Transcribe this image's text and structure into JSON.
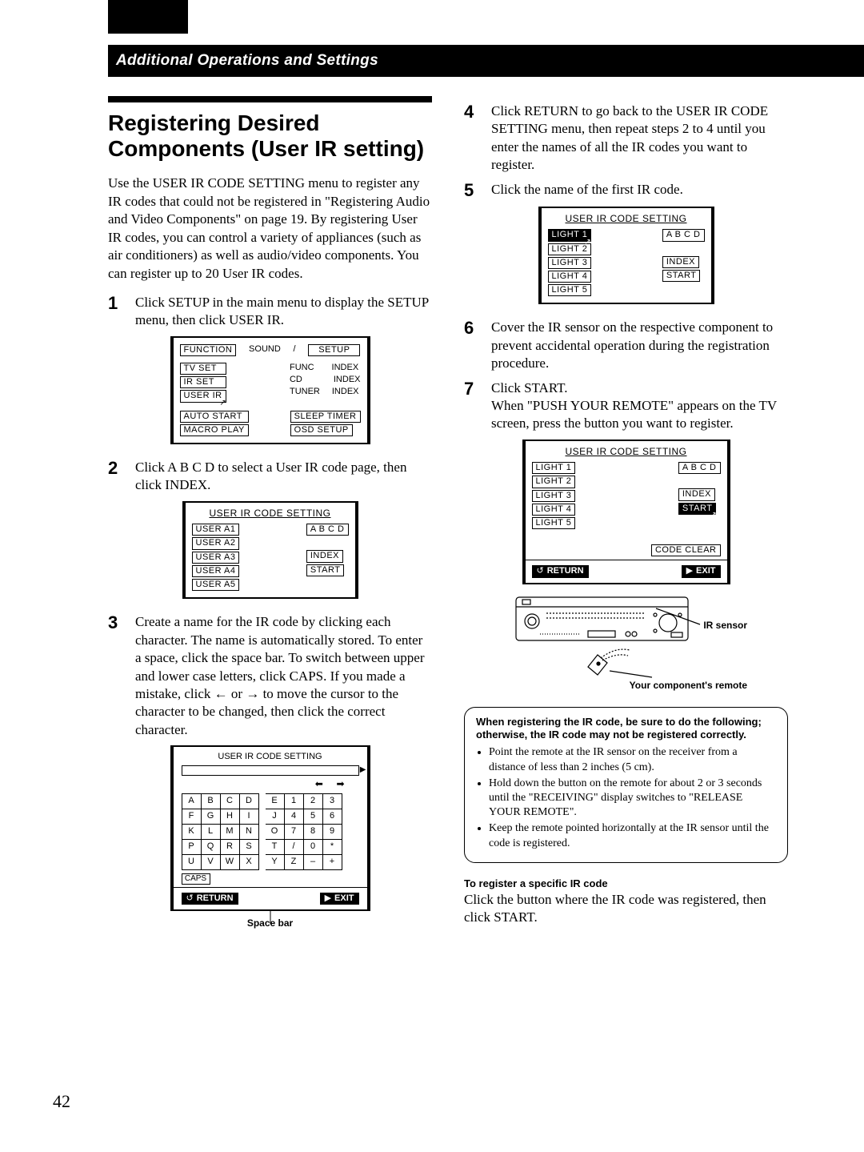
{
  "section_header": "Additional Operations and Settings",
  "title": "Registering Desired Components (User IR setting)",
  "intro": "Use the USER IR CODE SETTING menu to register any IR codes that could not be registered in \"Registering Audio and Video Components\" on page 19.  By registering User IR codes, you can control a variety of appliances (such as air conditioners) as well as audio/video components.  You can register up to 20 User IR codes.",
  "steps": {
    "1": "Click SETUP in the main menu to display the SETUP menu, then click USER IR.",
    "2": "Click A B C D to select a User IR code page, then click INDEX.",
    "3": "Create a name for the IR code by clicking each character. The name is automatically stored.  To enter a space, click the space bar.  To switch between upper and lower case letters, click CAPS. If you made a mistake, click ← or → to move the cursor to the character to be changed, then click the correct character.",
    "4": "Click RETURN to go back to the USER IR CODE SETTING menu, then repeat steps 2 to 4 until you enter the names of all the IR codes you want to register.",
    "5": "Click the name of the first IR code.",
    "6": "Cover the IR sensor on the respective component to prevent accidental operation during the registration procedure.",
    "7a": "Click START.",
    "7b": "When \"PUSH YOUR REMOTE\" appears on the TV screen, press the button you want to register."
  },
  "osd": {
    "setup": {
      "tabs": [
        "FUNCTION",
        "SOUND",
        "SETUP"
      ],
      "left": [
        "TV  SET",
        "IR   SET",
        "USER  IR"
      ],
      "right": [
        [
          "FUNC",
          "INDEX"
        ],
        [
          "CD",
          "INDEX"
        ],
        [
          "TUNER",
          "INDEX"
        ]
      ],
      "bottomL": [
        "AUTO  START",
        "MACRO  PLAY"
      ],
      "bottomR": [
        "SLEEP  TIMER",
        "OSD  SETUP"
      ]
    },
    "userir_a": {
      "title": "USER IR CODE SETTING",
      "left": [
        "USER   A1",
        "USER   A2",
        "USER   A3",
        "USER   A4",
        "USER   A5"
      ],
      "rt": "A   B   C   D",
      "rb": [
        "INDEX",
        "START"
      ]
    },
    "keyboard": {
      "title": "USER  IR  CODE  SETTING",
      "rows": [
        [
          "A",
          "B",
          "C",
          "D",
          "E",
          "1",
          "2",
          "3"
        ],
        [
          "F",
          "G",
          "H",
          "I",
          "J",
          "4",
          "5",
          "6"
        ],
        [
          "K",
          "L",
          "M",
          "N",
          "O",
          "7",
          "8",
          "9"
        ],
        [
          "P",
          "Q",
          "R",
          "S",
          "T",
          "/",
          "0",
          "*"
        ],
        [
          "U",
          "V",
          "W",
          "X",
          "Y",
          "Z",
          "–",
          "+"
        ]
      ],
      "caps": "CAPS",
      "return": "RETURN",
      "exit": "EXIT"
    },
    "spacebar_caption": "Space bar",
    "light": {
      "title": "USER IR CODE SETTING",
      "left": [
        "LIGHT  1",
        "LIGHT  2",
        "LIGHT  3",
        "LIGHT  4",
        "LIGHT  5"
      ],
      "rt": "A   B   C   D",
      "rb": [
        "INDEX",
        "START"
      ]
    },
    "light_full": {
      "title": "USER IR CODE SETTING",
      "left": [
        "LIGHT   1",
        "LIGHT   2",
        "LIGHT   3",
        "LIGHT   4",
        "LIGHT   5"
      ],
      "rt": "A   B   C   D",
      "rb": [
        "INDEX",
        "START"
      ],
      "code_clear": "CODE  CLEAR",
      "return": "RETURN",
      "exit": "EXIT"
    }
  },
  "receiver_labels": {
    "ir_sensor": "IR sensor",
    "remote": "Your component's remote"
  },
  "notebox": {
    "heading": "When registering the IR code, be sure to do the following; otherwise, the IR code may not be registered correctly.",
    "bullets": [
      "Point the remote at the IR sensor on the receiver from a distance of less than 2 inches (5 cm).",
      "Hold down the button on the remote for about 2 or 3 seconds until the \"RECEIVING\" display switches to \"RELEASE YOUR REMOTE\".",
      "Keep the remote pointed horizontally at the IR sensor until the code is registered."
    ]
  },
  "subhead": "To register a specific IR code",
  "subtext": "Click the button where the IR code was registered, then click START.",
  "page_number": "42"
}
